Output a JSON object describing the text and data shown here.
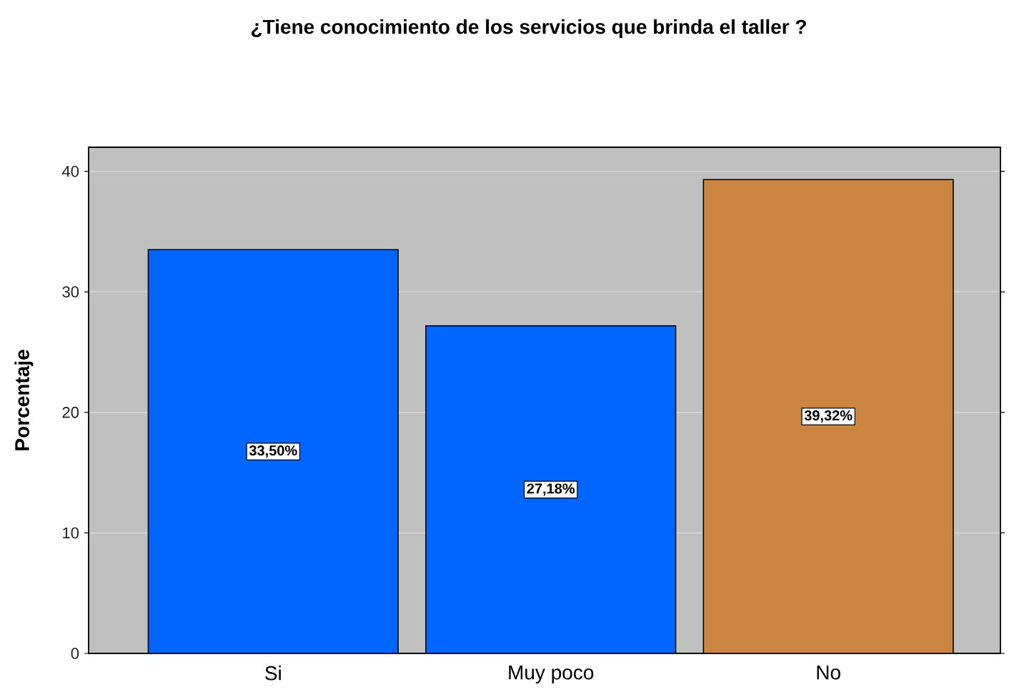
{
  "chart_data": {
    "type": "bar",
    "title": "¿Tiene conocimiento de los servicios que brinda el taller ?",
    "ylabel": "Porcentaje",
    "categories": [
      "Si",
      "Muy poco",
      "No"
    ],
    "values": [
      33.5,
      27.18,
      39.32
    ],
    "colors": [
      "#0066ff",
      "#0066ff",
      "#cc8540"
    ],
    "value_labels": [
      "33,50%",
      "27,18%",
      "39,32%"
    ],
    "ylim": [
      0,
      42
    ],
    "yticks": [
      0,
      10,
      20,
      30,
      40
    ],
    "grid": "y"
  }
}
